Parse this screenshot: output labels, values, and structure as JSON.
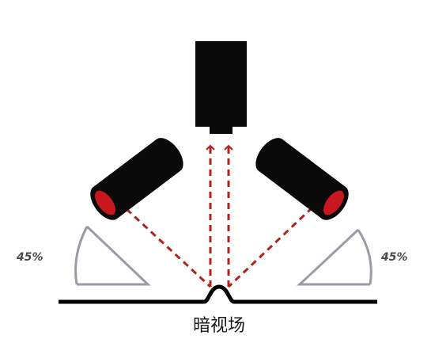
{
  "caption": "暗视场",
  "angle_left": "45%",
  "angle_right": "45%",
  "icons": {
    "camera": "camera-icon",
    "light_left": "spotlight-icon",
    "light_right": "spotlight-icon"
  },
  "colors": {
    "ray": "#b0221c",
    "lamp_lens": "#c8171d",
    "housing": "#0a0a0a",
    "angle_guide": "#9a9aa8",
    "surface": "#000000"
  }
}
